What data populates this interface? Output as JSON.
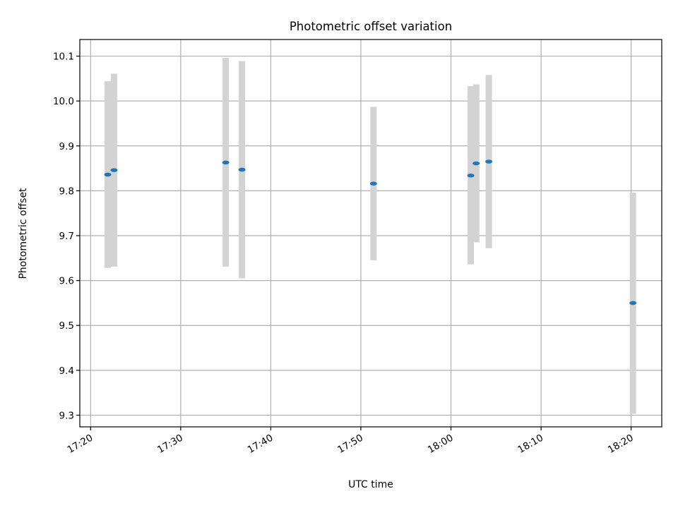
{
  "chart_data": {
    "type": "scatter",
    "title": "Photometric offset variation",
    "xlabel": "UTC time",
    "ylabel": "Photometric offset",
    "x_tick_labels": [
      "17:20",
      "17:30",
      "17:40",
      "17:50",
      "18:00",
      "18:10",
      "18:20"
    ],
    "y_tick_labels": [
      "9.3",
      "9.4",
      "9.5",
      "9.6",
      "9.7",
      "9.8",
      "9.9",
      "10.0",
      "10.1"
    ],
    "x_ticks": [
      "17:20",
      "17:30",
      "17:40",
      "17:50",
      "18:00",
      "18:10",
      "18:20"
    ],
    "y_ticks": [
      9.3,
      9.4,
      9.5,
      9.6,
      9.7,
      9.8,
      9.9,
      10.0,
      10.1
    ],
    "xlim": [
      "17:18.8",
      "18:23.4"
    ],
    "ylim": [
      9.274,
      10.137
    ],
    "grid": true,
    "series": [
      {
        "marker_color": "#1f77b4",
        "error_bar_color": "#d3d3d3",
        "points": [
          {
            "time": "17:21.9",
            "value": 9.836,
            "low": 9.628,
            "high": 10.044
          },
          {
            "time": "17:22.6",
            "value": 9.846,
            "low": 9.631,
            "high": 10.061
          },
          {
            "time": "17:35.0",
            "value": 9.863,
            "low": 9.631,
            "high": 10.096
          },
          {
            "time": "17:36.8",
            "value": 9.847,
            "low": 9.605,
            "high": 10.089
          },
          {
            "time": "17:51.4",
            "value": 9.816,
            "low": 9.645,
            "high": 9.987
          },
          {
            "time": "18:02.2",
            "value": 9.834,
            "low": 9.636,
            "high": 10.033
          },
          {
            "time": "18:02.8",
            "value": 9.861,
            "low": 9.685,
            "high": 10.037
          },
          {
            "time": "18:04.2",
            "value": 9.865,
            "low": 9.672,
            "high": 10.058
          },
          {
            "time": "18:20.2",
            "value": 9.55,
            "low": 9.303,
            "high": 9.796
          }
        ]
      }
    ]
  }
}
